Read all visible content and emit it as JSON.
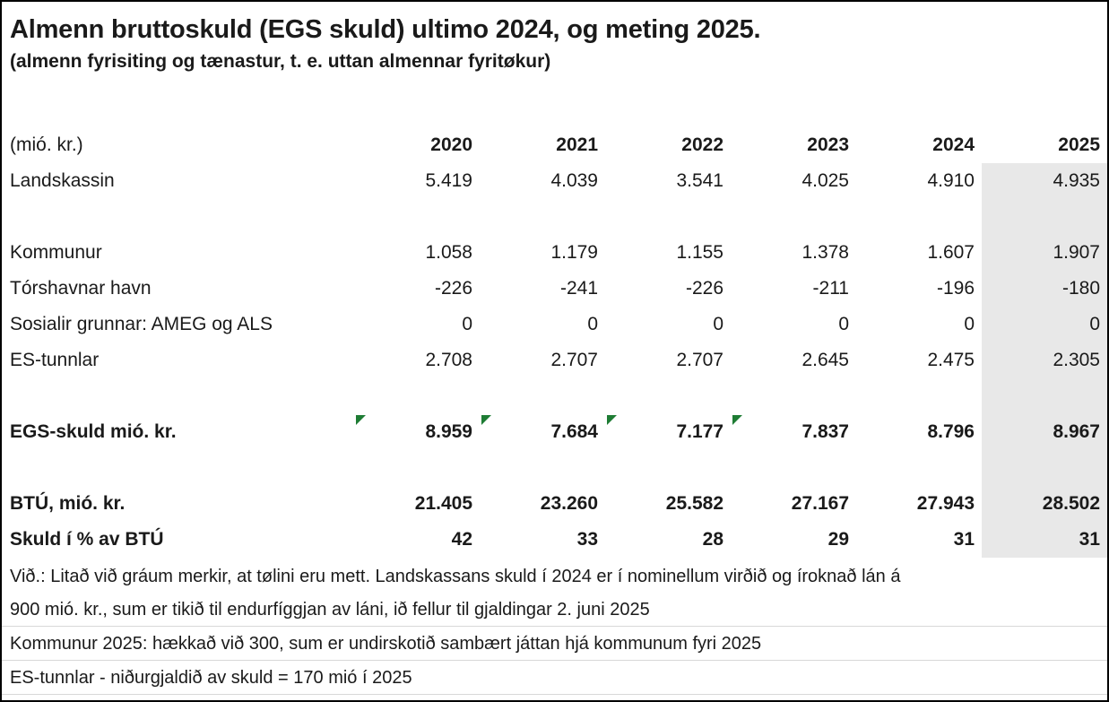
{
  "title": "Almenn bruttoskuld (EGS skuld) ultimo 2024, og meting 2025.",
  "subtitle": "(almenn fyrisiting og tænastur, t. e. uttan almennar fyritøkur)",
  "table": {
    "unit_label": "(mió. kr.)",
    "years": [
      "2020",
      "2021",
      "2022",
      "2023",
      "2024",
      "2025"
    ],
    "estimated_column_year": "2025",
    "estimated_fill_color": "#e8e8e8",
    "indicator_color": "#1e7c34",
    "indicator_icon": "green-corner-triangle",
    "rows": [
      {
        "label": "Landskassin",
        "bold": false,
        "spacer_after": true,
        "values": [
          "5.419",
          "4.039",
          "3.541",
          "4.025",
          "4.910",
          "4.935"
        ]
      },
      {
        "label": "Kommunur",
        "bold": false,
        "spacer_after": false,
        "values": [
          "1.058",
          "1.179",
          "1.155",
          "1.378",
          "1.607",
          "1.907"
        ]
      },
      {
        "label": "Tórshavnar havn",
        "bold": false,
        "spacer_after": false,
        "values": [
          "-226",
          "-241",
          "-226",
          "-211",
          "-196",
          "-180"
        ]
      },
      {
        "label": "Sosialir grunnar: AMEG og ALS",
        "bold": false,
        "spacer_after": false,
        "values": [
          "0",
          "0",
          "0",
          "0",
          "0",
          "0"
        ]
      },
      {
        "label": "ES-tunnlar",
        "bold": false,
        "spacer_after": true,
        "values": [
          "2.708",
          "2.707",
          "2.707",
          "2.645",
          "2.475",
          "2.305"
        ]
      },
      {
        "label": "EGS-skuld mió. kr.",
        "bold": true,
        "spacer_after": true,
        "values": [
          "8.959",
          "7.684",
          "7.177",
          "7.837",
          "8.796",
          "8.967"
        ],
        "flags": [
          true,
          true,
          true,
          true,
          false,
          false
        ]
      },
      {
        "label": "BTÚ, mió. kr.",
        "bold": true,
        "spacer_after": false,
        "values": [
          "21.405",
          "23.260",
          "25.582",
          "27.167",
          "27.943",
          "28.502"
        ]
      },
      {
        "label": "Skuld í % av BTÚ",
        "bold": true,
        "spacer_after": false,
        "values": [
          "42",
          "33",
          "28",
          "29",
          "31",
          "31"
        ]
      }
    ]
  },
  "notes": [
    "Við.: Litað við gráum merkir, at tølini eru mett. Landskassans skuld í 2024 er í nominellum virðið og íroknað lán á",
    "900 mió. kr., sum er tikið til endurfíggjan av láni, ið fellur til gjaldingar 2. juni 2025",
    "Kommunur 2025: hækkað við 300, sum er undirskotið sambært játtan hjá kommunum fyri 2025",
    "ES-tunnlar - niðurgjaldið av skuld = 170 mió í 2025"
  ]
}
